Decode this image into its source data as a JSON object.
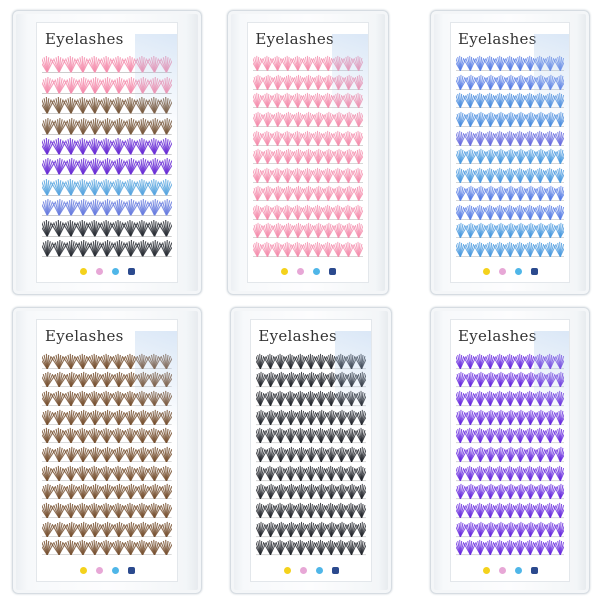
{
  "products": [
    {
      "title": "Eyelashes",
      "rows": [
        "#f58fae",
        "#f58fae",
        "#7a5a3e",
        "#7a5a3e",
        "#6b2fd6",
        "#6b2fd6",
        "#5aa6e0",
        "#6a7ee0",
        "#2b2f36",
        "#2b2f36"
      ]
    },
    {
      "title": "Eyelashes",
      "rows": [
        "#f58fae",
        "#f58fae",
        "#f58fae",
        "#f58fae",
        "#f58fae",
        "#f58fae",
        "#f58fae",
        "#f58fae",
        "#f58fae",
        "#f58fae",
        "#f58fae"
      ]
    },
    {
      "title": "Eyelashes",
      "rows": [
        "#5a7fe6",
        "#5a7fe6",
        "#4c8ee0",
        "#4c8ee0",
        "#6a6ee0",
        "#4c9be0",
        "#4c9be0",
        "#5a7fe6",
        "#5a7fe6",
        "#4c9be0",
        "#4c9be0"
      ]
    },
    {
      "title": "Eyelashes",
      "rows": [
        "#7a5434",
        "#7a5434",
        "#7a5434",
        "#7a5434",
        "#7a5434",
        "#7a5434",
        "#7a5434",
        "#7a5434",
        "#7a5434",
        "#7a5434",
        "#7a5434"
      ]
    },
    {
      "title": "Eyelashes",
      "rows": [
        "#25282e",
        "#25282e",
        "#25282e",
        "#25282e",
        "#25282e",
        "#25282e",
        "#25282e",
        "#25282e",
        "#25282e",
        "#25282e",
        "#25282e"
      ]
    },
    {
      "title": "Eyelashes",
      "rows": [
        "#6a2de0",
        "#6a2de0",
        "#6a2de0",
        "#6a2de0",
        "#6a2de0",
        "#6a2de0",
        "#6a2de0",
        "#6a2de0",
        "#6a2de0",
        "#6a2de0",
        "#6a2de0"
      ]
    }
  ],
  "badge_colors": [
    "#f4d21c",
    "#e7a7d6",
    "#4fb6e8",
    "#2b4a8e"
  ]
}
